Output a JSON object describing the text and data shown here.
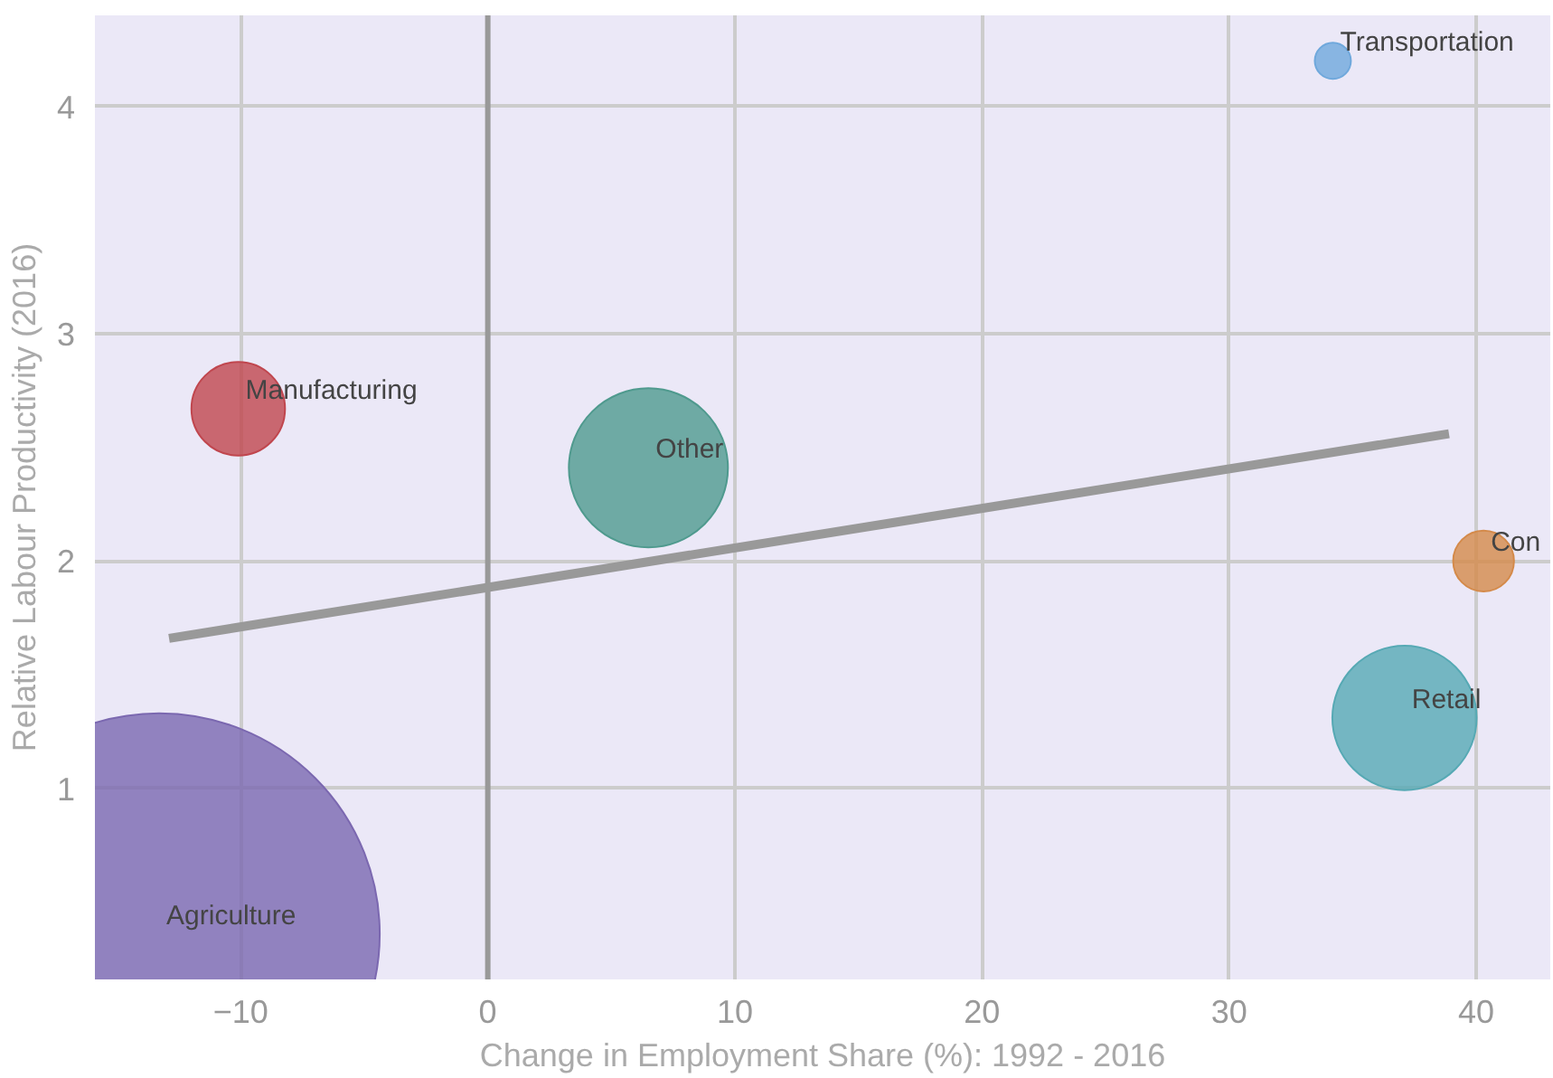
{
  "chart_data": {
    "type": "bubble",
    "xlabel": "Change in Employment Share (%): 1992 - 2016",
    "ylabel": "Relative Labour Productivity (2016)",
    "xlim": [
      -15.9,
      43
    ],
    "ylim": [
      0.16,
      4.4
    ],
    "xticks": [
      -10,
      0,
      10,
      20,
      30,
      40
    ],
    "yticks": [
      1,
      2,
      3,
      4
    ],
    "grid": true,
    "ref_lines": [
      {
        "axis": "x",
        "value": 0,
        "color": "#999999"
      }
    ],
    "series": [
      {
        "name": "Agriculture",
        "color": "#7b68b0",
        "x": [
          -13.3
        ],
        "values": [
          0.36
        ],
        "sizes": [
          1
        ]
      },
      {
        "name": "Manufacturing",
        "color": "#c0464e",
        "x": [
          -10.1
        ],
        "values": [
          2.67
        ],
        "sizes": [
          0.045
        ]
      },
      {
        "name": "Other",
        "color": "#4f9a8e",
        "x": [
          6.5
        ],
        "values": [
          2.41
        ],
        "sizes": [
          0.13
        ]
      },
      {
        "name": "Con",
        "color": "#d48a4a",
        "x": [
          40.3
        ],
        "values": [
          2.0
        ],
        "sizes": [
          0.019
        ]
      },
      {
        "name": "Retail",
        "color": "#56a9b4",
        "x": [
          37.1
        ],
        "values": [
          1.31
        ],
        "sizes": [
          0.107
        ]
      },
      {
        "name": "Transportation",
        "color": "#6fa8dc",
        "x": [
          34.2
        ],
        "values": [
          4.2
        ],
        "sizes": [
          0.0067
        ]
      },
      {
        "type": "line",
        "color": "#999999",
        "x": [
          -12.9,
          38.9
        ],
        "values": [
          1.66,
          2.56
        ]
      }
    ]
  }
}
